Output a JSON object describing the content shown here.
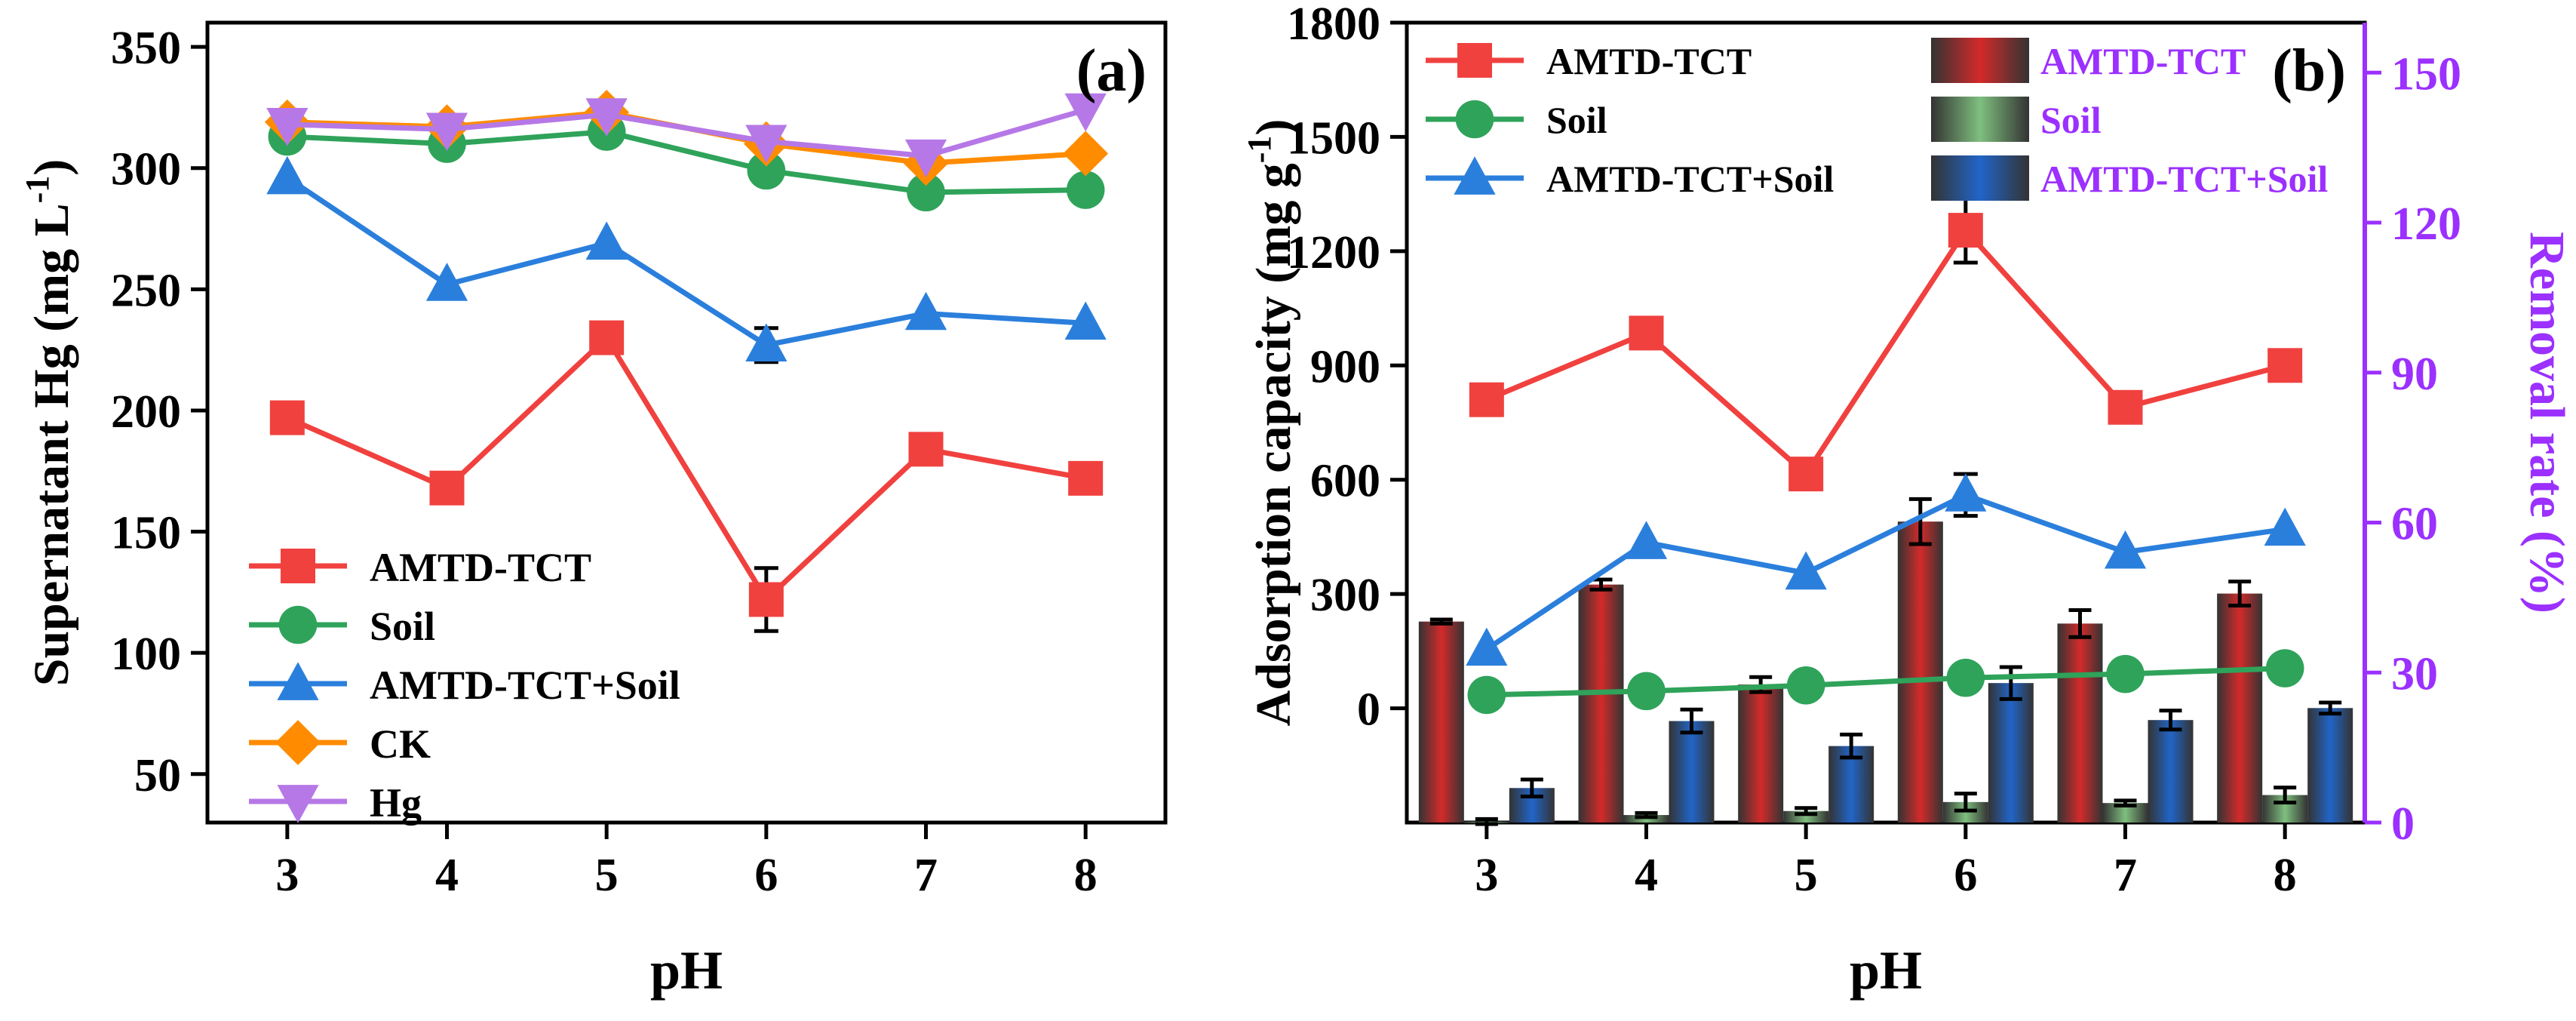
{
  "chart_data": [
    {
      "type": "line",
      "panel_label": "(a)",
      "xlabel": "pH",
      "ylabel": "Supernatant Hg (mg L",
      "ylabel_sup": "-1",
      "ylabel_close": ")",
      "xlim": [
        2.5,
        8.5
      ],
      "ylim": [
        30,
        360
      ],
      "x": [
        3,
        4,
        5,
        6,
        7,
        8
      ],
      "xticks": [
        "3",
        "4",
        "5",
        "6",
        "7",
        "8"
      ],
      "yticks": [
        "50",
        "100",
        "150",
        "200",
        "250",
        "300",
        "350"
      ],
      "legend_position": "bottom-left",
      "series": [
        {
          "name": "AMTD-TCT",
          "color": "#f0413f",
          "marker": "square",
          "values": [
            197,
            168,
            230,
            122,
            184,
            172
          ],
          "errors": [
            0,
            0,
            0,
            13,
            0,
            0
          ]
        },
        {
          "name": "Soil",
          "color": "#2fa35a",
          "marker": "circle",
          "values": [
            313,
            310,
            315,
            299,
            290,
            291
          ],
          "errors": [
            0,
            0,
            0,
            0,
            0,
            0
          ]
        },
        {
          "name": "AMTD-TCT+Soil",
          "color": "#2b7fdc",
          "marker": "triangle-up",
          "values": [
            296,
            252,
            269,
            227,
            240,
            236
          ],
          "errors": [
            0,
            0,
            0,
            7,
            0,
            0
          ]
        },
        {
          "name": "CK",
          "color": "#ff8c00",
          "marker": "diamond",
          "values": [
            319,
            317,
            323,
            310,
            302,
            306
          ],
          "errors": [
            0,
            0,
            0,
            0,
            0,
            0
          ]
        },
        {
          "name": "Hg",
          "color": "#b678e6",
          "marker": "triangle-down",
          "values": [
            318,
            316,
            322,
            311,
            305,
            324
          ],
          "errors": [
            0,
            0,
            0,
            0,
            0,
            0
          ]
        }
      ]
    },
    {
      "type": "bar+line",
      "panel_label": "(b)",
      "xlabel": "pH",
      "ylabel_left": "Adsorption capacity (mg g",
      "ylabel_left_sup": "-1",
      "ylabel_left_close": ")",
      "ylabel_right": "Removal rate (%)",
      "right_axis_color": "#9b30ff",
      "x": [
        3,
        4,
        5,
        6,
        7,
        8
      ],
      "xticks": [
        "3",
        "4",
        "5",
        "6",
        "7",
        "8"
      ],
      "xlim": [
        2.5,
        8.5
      ],
      "ylim_left": [
        -300,
        1800
      ],
      "yticks_left": [
        "0",
        "300",
        "600",
        "900",
        "1200",
        "1500",
        "1800"
      ],
      "ylim_right": [
        0,
        160
      ],
      "yticks_right": [
        "0",
        "30",
        "60",
        "90",
        "120",
        "150"
      ],
      "legend_position": "top",
      "lines": [
        {
          "name": "AMTD-TCT",
          "color": "#f0413f",
          "marker": "square",
          "values": [
            810,
            985,
            615,
            1255,
            790,
            900
          ],
          "errors": [
            0,
            0,
            0,
            85,
            0,
            0
          ]
        },
        {
          "name": "Soil",
          "color": "#2fa35a",
          "marker": "circle",
          "values": [
            35,
            45,
            60,
            80,
            90,
            105
          ],
          "errors": [
            0,
            0,
            0,
            0,
            0,
            0
          ]
        },
        {
          "name": "AMTD-TCT+Soil",
          "color": "#2b7fdc",
          "marker": "triangle-up",
          "values": [
            155,
            435,
            355,
            560,
            410,
            470
          ],
          "errors": [
            0,
            0,
            0,
            55,
            0,
            0
          ]
        }
      ],
      "bars": [
        {
          "name": "AMTD-TCT",
          "color": "#d42a2a",
          "values": [
            40.2,
            47.6,
            27.6,
            60.2,
            39.8,
            45.8
          ],
          "errors": [
            0.4,
            1,
            1.5,
            4.5,
            2.7,
            2.4
          ]
        },
        {
          "name": "Soil",
          "color": "#7fbf7f",
          "values": [
            0.2,
            1.5,
            2.3,
            4.1,
            3.9,
            5.5
          ],
          "errors": [
            0.5,
            0.4,
            0.6,
            1.7,
            0.5,
            1.5
          ]
        },
        {
          "name": "AMTD-TCT+Soil",
          "color": "#2165c8",
          "values": [
            6.9,
            20.3,
            15.3,
            27.9,
            20.5,
            22.9
          ],
          "errors": [
            1.7,
            2.3,
            2.3,
            3.2,
            1.9,
            1.1
          ]
        }
      ]
    }
  ]
}
